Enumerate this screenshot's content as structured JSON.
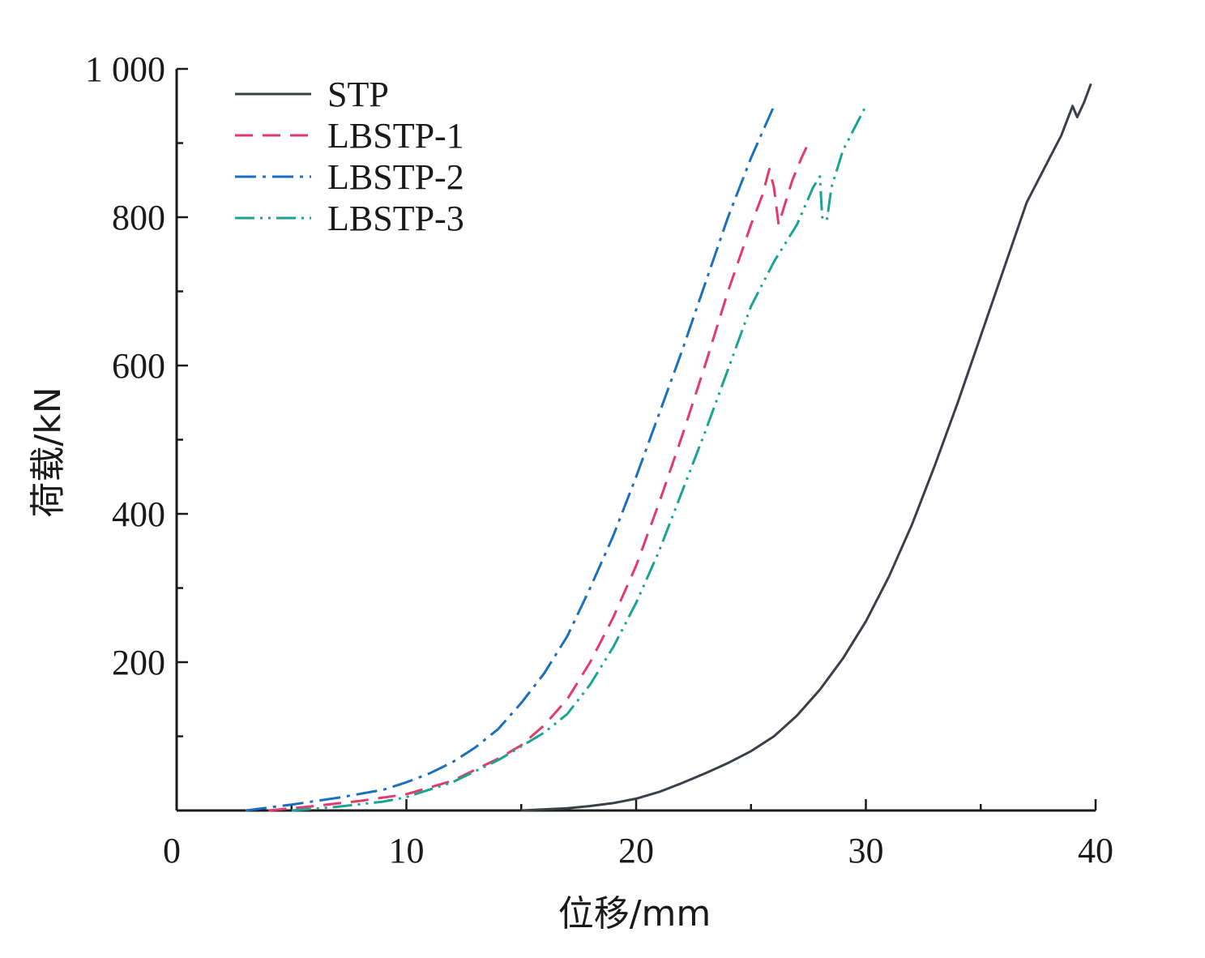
{
  "chart_data": {
    "type": "line",
    "xlabel": "位移/mm",
    "ylabel": "荷载/kN",
    "xlim": [
      0,
      40
    ],
    "ylim": [
      0,
      1000
    ],
    "x_ticks": [
      0,
      10,
      20,
      30,
      40
    ],
    "x_tick_labels": [
      "0",
      "10",
      "20",
      "30",
      "40"
    ],
    "y_ticks": [
      200,
      400,
      600,
      800,
      1000
    ],
    "y_tick_labels": [
      "200",
      "400",
      "600",
      "800",
      "1 000"
    ],
    "grid": false,
    "legend_position": "top-left",
    "series": [
      {
        "name": "STP",
        "color": "#3a3f4a",
        "style": "solid",
        "points": [
          [
            15,
            0
          ],
          [
            17,
            3
          ],
          [
            18,
            6
          ],
          [
            19,
            10
          ],
          [
            20,
            16
          ],
          [
            21,
            25
          ],
          [
            22,
            37
          ],
          [
            23,
            50
          ],
          [
            24,
            64
          ],
          [
            25,
            80
          ],
          [
            26,
            100
          ],
          [
            27,
            128
          ],
          [
            28,
            163
          ],
          [
            29,
            205
          ],
          [
            30,
            255
          ],
          [
            31,
            315
          ],
          [
            32,
            385
          ],
          [
            33,
            465
          ],
          [
            34,
            550
          ],
          [
            35,
            640
          ],
          [
            36,
            730
          ],
          [
            37,
            820
          ],
          [
            38,
            880
          ],
          [
            38.5,
            910
          ],
          [
            39,
            950
          ],
          [
            39.2,
            935
          ],
          [
            39.5,
            955
          ],
          [
            39.8,
            980
          ]
        ]
      },
      {
        "name": "LBSTP-1",
        "color": "#e23a6a",
        "style": "dashed",
        "points": [
          [
            4,
            0
          ],
          [
            6,
            6
          ],
          [
            8,
            13
          ],
          [
            10,
            22
          ],
          [
            12,
            40
          ],
          [
            14,
            70
          ],
          [
            15,
            88
          ],
          [
            16,
            115
          ],
          [
            17,
            150
          ],
          [
            18,
            200
          ],
          [
            19,
            260
          ],
          [
            20,
            330
          ],
          [
            21,
            415
          ],
          [
            22,
            505
          ],
          [
            23,
            600
          ],
          [
            24,
            700
          ],
          [
            25,
            790
          ],
          [
            25.5,
            830
          ],
          [
            25.8,
            865
          ],
          [
            26,
            840
          ],
          [
            26.2,
            790
          ],
          [
            26.5,
            820
          ],
          [
            26.8,
            850
          ],
          [
            27.2,
            880
          ],
          [
            27.5,
            900
          ]
        ]
      },
      {
        "name": "LBSTP-2",
        "color": "#1a6fbe",
        "style": "dashdot",
        "points": [
          [
            3,
            0
          ],
          [
            5,
            8
          ],
          [
            7,
            17
          ],
          [
            9,
            28
          ],
          [
            10,
            38
          ],
          [
            11,
            50
          ],
          [
            12,
            65
          ],
          [
            13,
            85
          ],
          [
            14,
            110
          ],
          [
            15,
            145
          ],
          [
            16,
            185
          ],
          [
            17,
            235
          ],
          [
            18,
            300
          ],
          [
            19,
            370
          ],
          [
            20,
            450
          ],
          [
            21,
            535
          ],
          [
            22,
            620
          ],
          [
            23,
            710
          ],
          [
            24,
            800
          ],
          [
            25,
            880
          ],
          [
            25.5,
            915
          ],
          [
            26,
            950
          ]
        ]
      },
      {
        "name": "LBSTP-3",
        "color": "#1aa393",
        "style": "dashdotdot",
        "points": [
          [
            5,
            0
          ],
          [
            7,
            5
          ],
          [
            9,
            12
          ],
          [
            10,
            18
          ],
          [
            12,
            38
          ],
          [
            14,
            68
          ],
          [
            16,
            105
          ],
          [
            17,
            130
          ],
          [
            18,
            170
          ],
          [
            19,
            220
          ],
          [
            20,
            280
          ],
          [
            21,
            350
          ],
          [
            22,
            430
          ],
          [
            23,
            510
          ],
          [
            24,
            595
          ],
          [
            25,
            680
          ],
          [
            26,
            740
          ],
          [
            27,
            790
          ],
          [
            27.7,
            840
          ],
          [
            28,
            855
          ],
          [
            28.1,
            800
          ],
          [
            28.3,
            795
          ],
          [
            28.5,
            840
          ],
          [
            29,
            890
          ],
          [
            29.5,
            920
          ],
          [
            30,
            950
          ]
        ]
      }
    ]
  }
}
